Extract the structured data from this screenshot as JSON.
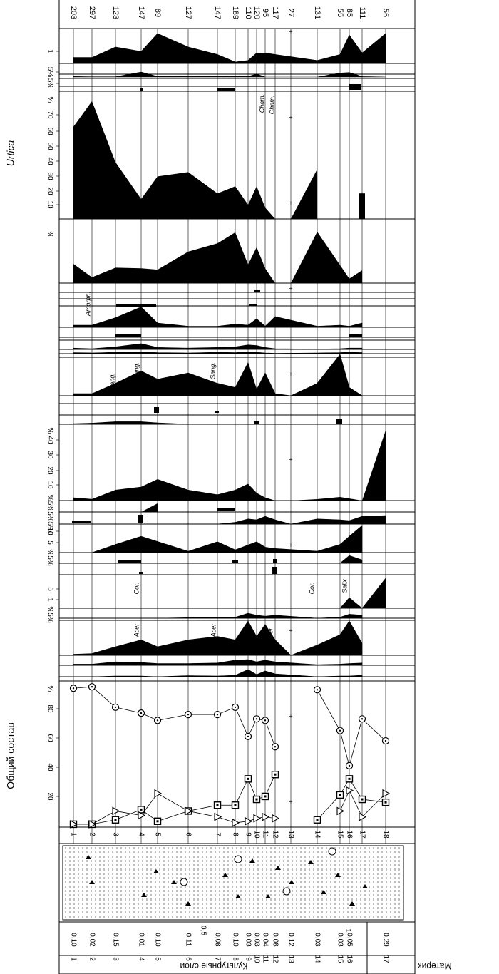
{
  "colors": {
    "ink": "#000000",
    "paper": "#ffffff"
  },
  "left_labels": {
    "total": "Общий состав",
    "urtica": "Urtica"
  },
  "top_counts": [
    "203",
    "297",
    "123",
    "147",
    "89",
    "127",
    "147",
    "189",
    "110",
    "120",
    "95",
    "117",
    "27",
    "131",
    "55",
    "85",
    "111",
    "56"
  ],
  "sample_numbers": [
    "1",
    "2",
    "3",
    "4",
    "5",
    "6",
    "7",
    "8",
    "9",
    "10",
    "11",
    "12",
    "13",
    "14",
    "15",
    "16",
    "17",
    "18"
  ],
  "depth_marks": {
    "d05": "0,5",
    "d1": "1"
  },
  "layers": {
    "section_main": "Культурные слои",
    "section_base": "Материк",
    "numbers": [
      "1",
      "2",
      "3",
      "4",
      "5",
      "6",
      "7",
      "8",
      "9",
      "10",
      "11",
      "12",
      "13",
      "14",
      "15",
      "16",
      "17"
    ],
    "thicknesses": [
      "0,10",
      "0,02",
      "0,15",
      "0,01",
      "0,10",
      "0,11",
      "0,08",
      "0,10",
      "0,03",
      "0,03",
      "0,04",
      "0,08",
      "0,12",
      "0,03",
      "0,03",
      "0,05",
      "0,29"
    ]
  },
  "taxa_labels": {
    "urtica": "Urtica",
    "cham1": "Cham.",
    "cham2": "Cham.",
    "amorph": "Amorph.",
    "sang1": "Sang.",
    "sang2": "Sang.",
    "sang3": "Sang.",
    "cor1": "Cor.",
    "cor2": "Cor.",
    "salix": "Salix",
    "acer1": "Acer",
    "acer2": "Acer",
    "acer3": "Acer"
  },
  "scale_labels": {
    "s1": [
      "1"
    ],
    "s2": [
      "5%"
    ],
    "s3": [
      "5%"
    ],
    "urtica": [
      "%",
      "70",
      "60",
      "50",
      "40",
      "30",
      "20",
      "10"
    ],
    "s5": [
      "%"
    ],
    "s6": [
      "%",
      "40",
      "30",
      "20",
      "10"
    ],
    "s7": [
      "%5%5%5%"
    ],
    "s8": [
      "10",
      "5"
    ],
    "s9": [
      "%5%"
    ],
    "s10": [
      "5",
      "1"
    ],
    "s11": [
      "%5%"
    ],
    "total": [
      "%",
      "80",
      "60",
      "40",
      "20"
    ]
  },
  "chart_data": {
    "type": "area",
    "title": "",
    "samples": [
      1,
      2,
      3,
      4,
      5,
      6,
      7,
      8,
      9,
      10,
      11,
      12,
      13,
      14,
      15,
      16,
      17,
      18
    ],
    "counts": [
      203,
      297,
      123,
      147,
      89,
      127,
      147,
      189,
      110,
      120,
      95,
      117,
      27,
      131,
      55,
      85,
      111,
      56
    ],
    "series": [
      {
        "name": "Urtica",
        "unit": "%",
        "values": [
          65,
          83,
          40,
          14,
          30,
          33,
          18,
          23,
          10,
          23,
          8,
          0,
          null,
          35,
          null,
          null,
          18,
          null
        ]
      },
      {
        "name": "",
        "unit": "%",
        "values": [
          30,
          9,
          24,
          23,
          21,
          49,
          62,
          79,
          29,
          56,
          23,
          0,
          null,
          80,
          28,
          7,
          20,
          null
        ]
      },
      {
        "name": "",
        "unit": "%",
        "values": [
          2,
          1,
          7,
          9,
          14,
          7,
          4,
          7,
          11,
          5,
          2,
          0,
          null,
          1,
          2,
          5,
          2,
          46
        ]
      },
      {
        "name": "",
        "unit": "%",
        "values": [
          45,
          30,
          65,
          95,
          92,
          98,
          90,
          88,
          96,
          79,
          97,
          80,
          null,
          63,
          85,
          112,
          90,
          null
        ]
      },
      {
        "name": "",
        "unit": "%",
        "values": [
          5,
          5,
          10,
          19,
          9,
          14,
          18,
          19,
          37,
          30,
          11,
          20,
          0,
          5,
          25,
          46,
          12,
          null
        ]
      },
      {
        "name": "",
        "unit": "%",
        "values": [
          1,
          1,
          2,
          3,
          1,
          2,
          3,
          4,
          4,
          5,
          3,
          0,
          null,
          1,
          3,
          4,
          5,
          42
        ]
      }
    ],
    "total_composition": {
      "type": "scatter",
      "xlim": [
        0,
        100
      ],
      "ticks": [
        20,
        40,
        60,
        80
      ],
      "series": [
        {
          "name": "",
          "marker": "circle",
          "values": [
            95,
            96,
            82,
            78,
            73,
            77,
            77,
            82,
            62,
            74,
            73,
            55,
            null,
            94,
            66,
            42,
            74,
            59
          ]
        },
        {
          "name": "",
          "marker": "square",
          "values": [
            2,
            2,
            5,
            12,
            4,
            11,
            15,
            15,
            33,
            19,
            21,
            36,
            null,
            5,
            22,
            33,
            19,
            17
          ]
        },
        {
          "name": "",
          "marker": "triangle",
          "values": [
            2,
            2,
            11,
            8,
            23,
            11,
            7,
            3,
            4,
            6,
            7,
            6,
            null,
            null,
            11,
            25,
            7,
            23
          ]
        }
      ]
    }
  }
}
